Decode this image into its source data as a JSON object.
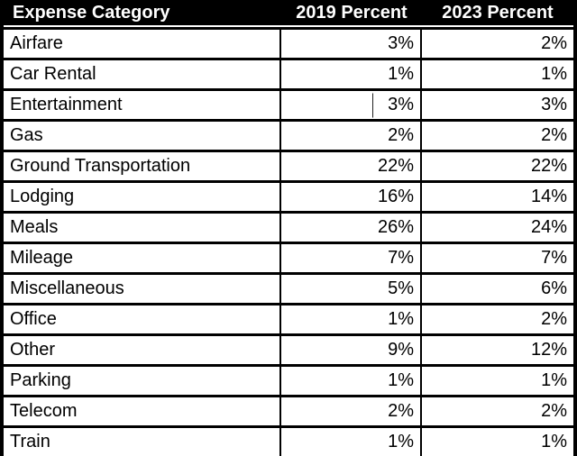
{
  "table": {
    "headers": [
      "Expense Category",
      "2019 Percent",
      "2023 Percent"
    ],
    "rows": [
      {
        "category": "Airfare",
        "percent_2019": "3%",
        "percent_2023": "2%"
      },
      {
        "category": "Car Rental",
        "percent_2019": "1%",
        "percent_2023": "1%"
      },
      {
        "category": "Entertainment",
        "percent_2019": "3%",
        "percent_2023": "3%"
      },
      {
        "category": "Gas",
        "percent_2019": "2%",
        "percent_2023": "2%"
      },
      {
        "category": "Ground Transportation",
        "percent_2019": "22%",
        "percent_2023": "22%"
      },
      {
        "category": "Lodging",
        "percent_2019": "16%",
        "percent_2023": "14%"
      },
      {
        "category": "Meals",
        "percent_2019": "26%",
        "percent_2023": "24%"
      },
      {
        "category": "Mileage",
        "percent_2019": "7%",
        "percent_2023": "7%"
      },
      {
        "category": "Miscellaneous",
        "percent_2019": "5%",
        "percent_2023": "6%"
      },
      {
        "category": "Office",
        "percent_2019": "1%",
        "percent_2023": "2%"
      },
      {
        "category": "Other",
        "percent_2019": "9%",
        "percent_2023": "12%"
      },
      {
        "category": "Parking",
        "percent_2019": "1%",
        "percent_2023": "1%"
      },
      {
        "category": "Telecom",
        "percent_2019": "2%",
        "percent_2023": "2%"
      },
      {
        "category": "Train",
        "percent_2019": "1%",
        "percent_2023": "1%"
      }
    ],
    "edit_caret": {
      "row_index": 2,
      "column_index": 1
    }
  },
  "colors": {
    "header_bg": "#000000",
    "header_text": "#ffffff",
    "cell_bg": "#ffffff",
    "cell_text": "#000000",
    "border": "#000000"
  }
}
